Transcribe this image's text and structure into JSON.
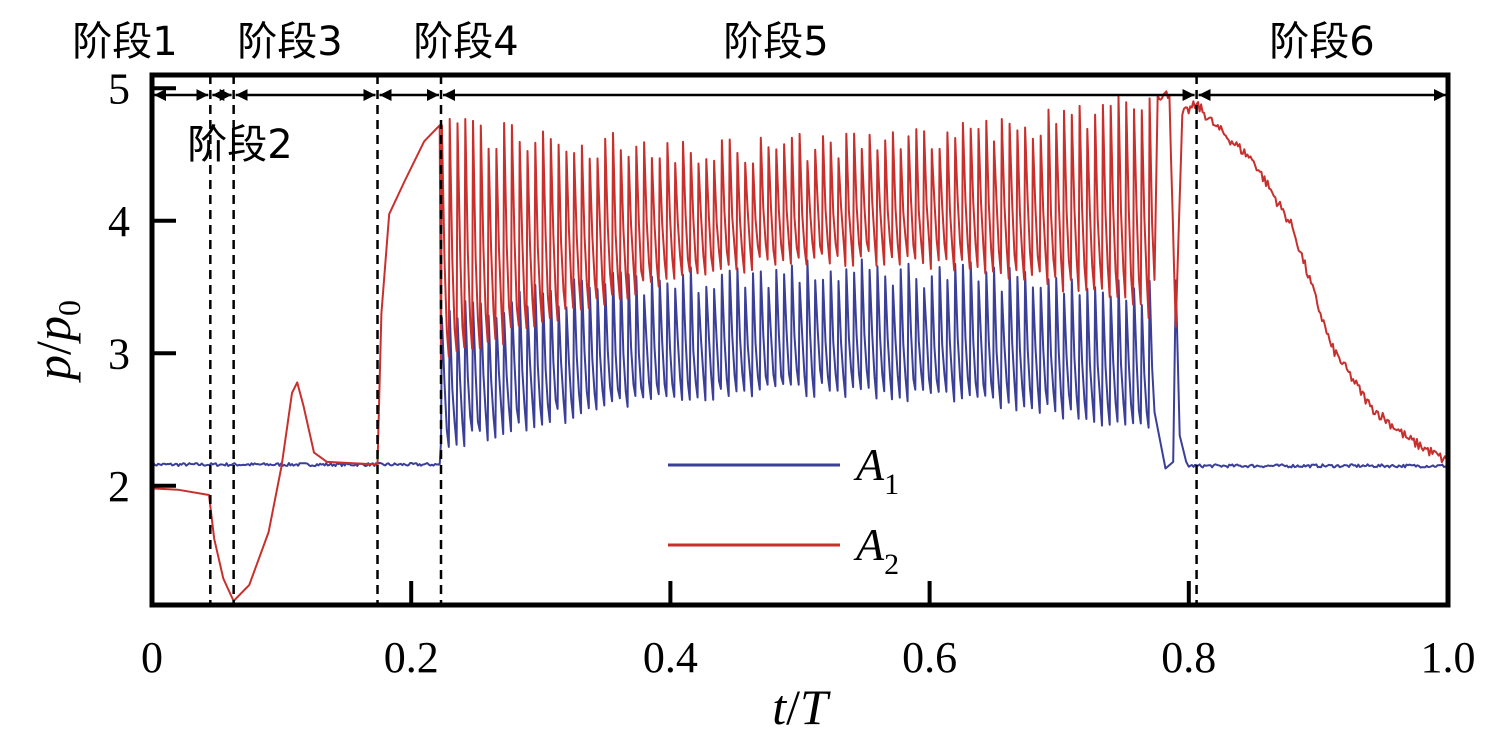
{
  "chart_data": {
    "type": "line",
    "xlabel": {
      "var1": "t",
      "sep": "/",
      "var2": "T"
    },
    "ylabel": {
      "var1": "p",
      "sep": "/",
      "var2": "p",
      "sub": "0"
    },
    "xlim": [
      0,
      1.0
    ],
    "ylim": [
      1.1,
      5.1
    ],
    "x_ticks": [
      0,
      0.2,
      0.4,
      0.6,
      0.8,
      1.0
    ],
    "x_tick_labels": [
      "0",
      "0.2",
      "0.4",
      "0.6",
      "0.8",
      "1.0"
    ],
    "y_ticks": [
      2,
      3,
      4,
      5
    ],
    "y_tick_labels": [
      "2",
      "3",
      "4",
      "5"
    ],
    "grid": false,
    "legend_position": "bottom-center",
    "stage_boundaries": [
      0,
      0.045,
      0.063,
      0.174,
      0.223,
      0.806,
      1.0
    ],
    "stages": [
      {
        "label": "阶段1",
        "from": 0,
        "to": 0.045
      },
      {
        "label": "阶段2",
        "from": 0.045,
        "to": 0.063
      },
      {
        "label": "阶段3",
        "from": 0.063,
        "to": 0.174
      },
      {
        "label": "阶段4",
        "from": 0.174,
        "to": 0.223
      },
      {
        "label": "阶段5",
        "from": 0.223,
        "to": 0.806
      },
      {
        "label": "阶段6",
        "from": 0.806,
        "to": 1.0
      }
    ],
    "series": [
      {
        "name": "A",
        "sub": "1",
        "color": "#3b3f97",
        "segments": [
          {
            "kind": "flat",
            "from": 0,
            "to": 0.223,
            "level": 2.16,
            "noise": 0.012
          },
          {
            "kind": "oscillation",
            "from": 0.223,
            "to": 0.775,
            "trough_start": 2.3,
            "trough_mid": 2.72,
            "trough_end": 2.38,
            "peak_start": 3.3,
            "peak_mid": 3.6,
            "peak_end": 3.45,
            "period": 0.006
          },
          {
            "kind": "spike",
            "x": 0.79,
            "peak": 3.55,
            "settle": 2.18
          },
          {
            "kind": "flat",
            "from": 0.8,
            "to": 1.0,
            "level": 2.15,
            "noise": 0.012
          }
        ]
      },
      {
        "name": "A",
        "sub": "2",
        "color": "#c8302e",
        "points": [
          [
            0,
            1.98
          ],
          [
            0.02,
            1.97
          ],
          [
            0.044,
            1.93
          ],
          [
            0.048,
            1.6
          ],
          [
            0.055,
            1.3
          ],
          [
            0.063,
            1.13
          ],
          [
            0.075,
            1.25
          ],
          [
            0.09,
            1.65
          ],
          [
            0.1,
            2.15
          ],
          [
            0.108,
            2.7
          ],
          [
            0.112,
            2.78
          ],
          [
            0.117,
            2.6
          ],
          [
            0.125,
            2.25
          ],
          [
            0.135,
            2.18
          ],
          [
            0.174,
            2.16
          ],
          [
            0.177,
            3.3
          ],
          [
            0.183,
            4.05
          ],
          [
            0.195,
            4.3
          ],
          [
            0.21,
            4.6
          ],
          [
            0.222,
            4.72
          ]
        ],
        "segments": [
          {
            "kind": "oscillation",
            "from": 0.223,
            "to": 0.775,
            "trough_start": 2.9,
            "trough_mid": 3.7,
            "trough_end": 3.3,
            "peak_start": 4.7,
            "peak_mid": 4.55,
            "peak_end": 4.9,
            "period": 0.006
          },
          {
            "kind": "points",
            "points": [
              [
                0.776,
                4.95
              ],
              [
                0.785,
                4.95
              ],
              [
                0.79,
                3.2
              ],
              [
                0.795,
                4.8
              ],
              [
                0.806,
                4.88
              ],
              [
                0.82,
                4.72
              ],
              [
                0.85,
                4.45
              ],
              [
                0.88,
                3.95
              ],
              [
                0.91,
                3.05
              ],
              [
                0.94,
                2.6
              ],
              [
                0.97,
                2.35
              ],
              [
                1.0,
                2.18
              ]
            ]
          }
        ]
      }
    ]
  }
}
